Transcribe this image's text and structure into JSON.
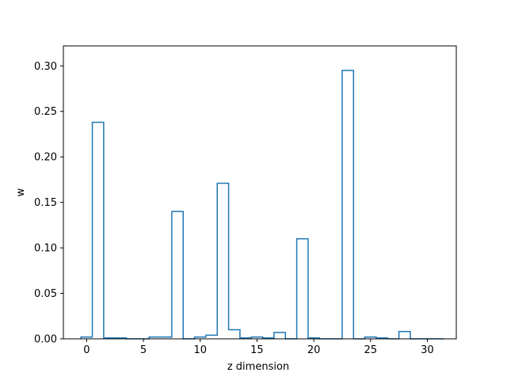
{
  "chart_data": {
    "type": "bar",
    "style": "step-outline",
    "title": "",
    "xlabel": "z dimension",
    "ylabel": "w",
    "xlim": [
      -2.05,
      32.55
    ],
    "ylim": [
      0,
      0.322
    ],
    "xticks": [
      0,
      5,
      10,
      15,
      20,
      25,
      30
    ],
    "yticks": [
      0.0,
      0.05,
      0.1,
      0.15,
      0.2,
      0.25,
      0.3
    ],
    "ytick_labels": [
      "0.00",
      "0.05",
      "0.10",
      "0.15",
      "0.20",
      "0.25",
      "0.30"
    ],
    "grid": false,
    "line_color": "#1f77b4",
    "categories": [
      0,
      1,
      2,
      3,
      4,
      5,
      6,
      7,
      8,
      9,
      10,
      11,
      12,
      13,
      14,
      15,
      16,
      17,
      18,
      19,
      20,
      21,
      22,
      23,
      24,
      25,
      26,
      27,
      28,
      29,
      30,
      31
    ],
    "values": [
      0.002,
      0.238,
      0.001,
      0.001,
      0.0,
      0.0,
      0.002,
      0.002,
      0.14,
      0.0,
      0.002,
      0.004,
      0.171,
      0.01,
      0.001,
      0.002,
      0.001,
      0.007,
      0.0,
      0.11,
      0.001,
      0.0,
      0.0,
      0.295,
      0.0,
      0.002,
      0.001,
      0.0,
      0.008,
      0.0,
      0.0,
      0.0
    ]
  }
}
